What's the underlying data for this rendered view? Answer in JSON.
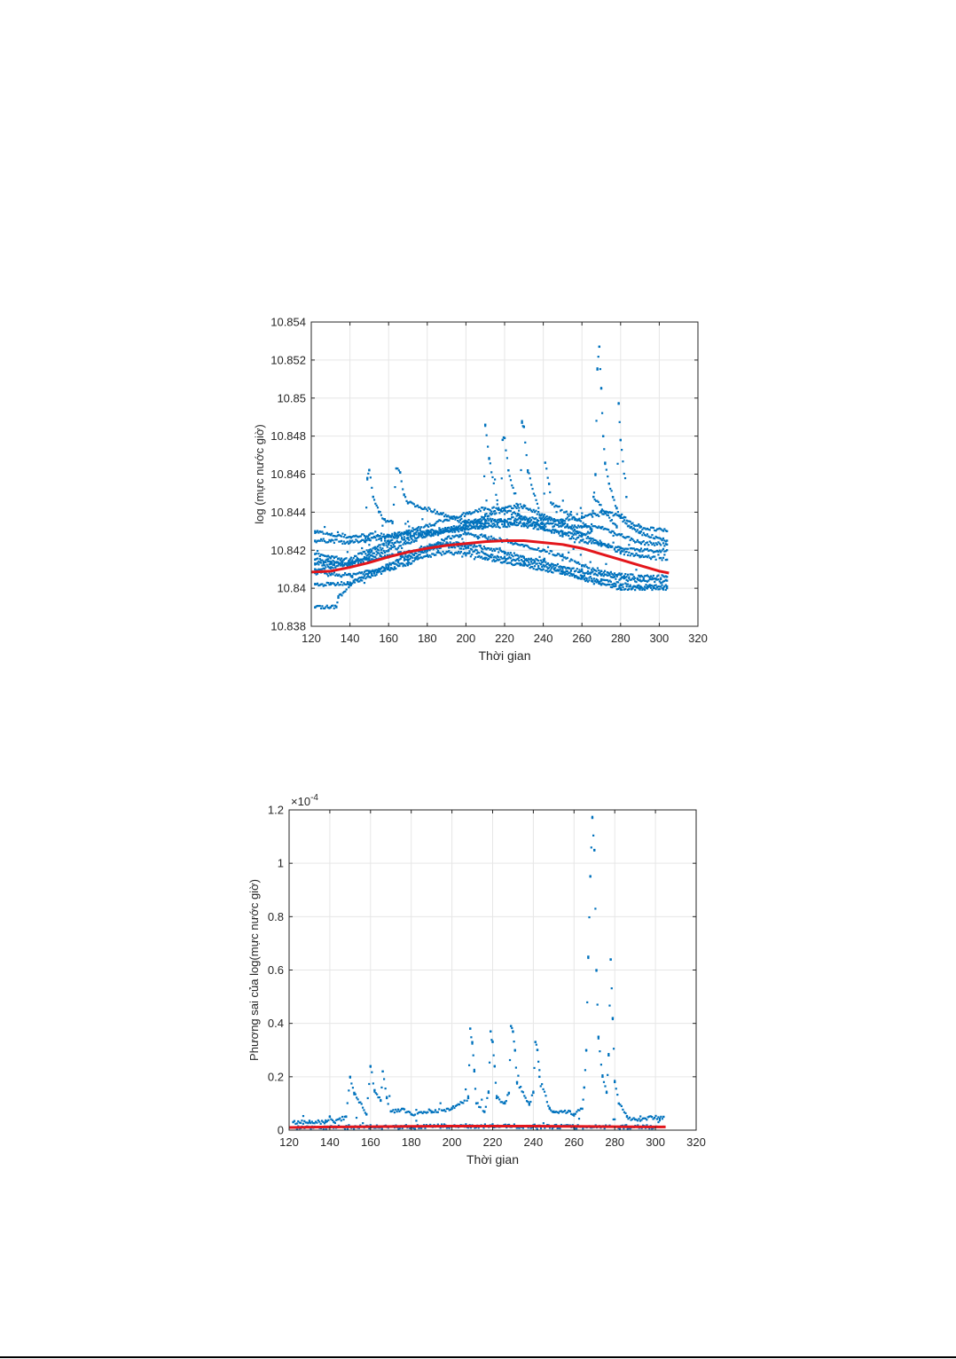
{
  "chart_data": [
    {
      "type": "scatter",
      "title": "",
      "xlabel": "Thời gian",
      "ylabel": "log (mực nước giờ)",
      "xlim": [
        120,
        320
      ],
      "ylim": [
        10.838,
        10.854
      ],
      "xticks": [
        "120",
        "140",
        "160",
        "180",
        "200",
        "220",
        "240",
        "260",
        "280",
        "300",
        "320"
      ],
      "yticks": [
        "10.838",
        "10.84",
        "10.842",
        "10.844",
        "10.846",
        "10.848",
        "10.85",
        "10.852",
        "10.854"
      ],
      "grid": true,
      "colors": {
        "points": "#0072BD",
        "trend": "#E3161B"
      },
      "series": [
        {
          "style": "points",
          "x": [
            122,
            130,
            140,
            150,
            160,
            170,
            180,
            190,
            200,
            210,
            220,
            230,
            240,
            250,
            260,
            270,
            280,
            290,
            304
          ],
          "y": [
            10.843,
            10.8428,
            10.8427,
            10.8428,
            10.8428,
            10.8429,
            10.843,
            10.843,
            10.8431,
            10.8432,
            10.8433,
            10.8434,
            10.8434,
            10.8433,
            10.8432,
            10.8432,
            10.8428,
            10.8424,
            10.8423
          ]
        },
        {
          "style": "points",
          "x": [
            122,
            130,
            140,
            150,
            160,
            170,
            180,
            190,
            200,
            210,
            220,
            230,
            240,
            250,
            260,
            270,
            280,
            290,
            304
          ],
          "y": [
            10.8425,
            10.8425,
            10.8424,
            10.8426,
            10.8427,
            10.8428,
            10.8429,
            10.843,
            10.8432,
            10.8434,
            10.8436,
            10.8437,
            10.8436,
            10.8436,
            10.8437,
            10.844,
            10.8438,
            10.8432,
            10.843
          ]
        },
        {
          "style": "points",
          "x": [
            122,
            130,
            140,
            150,
            160,
            170,
            180,
            190,
            200,
            210,
            220,
            230,
            240,
            250,
            260,
            270,
            280,
            290,
            304
          ],
          "y": [
            10.8413,
            10.8413,
            10.8412,
            10.8418,
            10.8423,
            10.8426,
            10.8428,
            10.843,
            10.8433,
            10.8438,
            10.8442,
            10.8443,
            10.8438,
            10.8434,
            10.8428,
            10.8424,
            10.8419,
            10.8417,
            10.8415
          ]
        },
        {
          "style": "points",
          "x": [
            122,
            130,
            140,
            150,
            160,
            170,
            180,
            190,
            200,
            210,
            220,
            230,
            240,
            250,
            260,
            270,
            280,
            290,
            304
          ],
          "y": [
            10.841,
            10.8411,
            10.8413,
            10.8415,
            10.8417,
            10.8419,
            10.8422,
            10.8424,
            10.8423,
            10.8421,
            10.8419,
            10.8416,
            10.8414,
            10.8411,
            10.8409,
            10.8407,
            10.8405,
            10.8404,
            10.8404
          ]
        },
        {
          "style": "points",
          "x": [
            122,
            130,
            140,
            150,
            160,
            170,
            180,
            190,
            200,
            210,
            220,
            230,
            240,
            250,
            260,
            270,
            280,
            290,
            304
          ],
          "y": [
            10.8408,
            10.8407,
            10.8407,
            10.8409,
            10.841,
            10.8413,
            10.8417,
            10.8419,
            10.8418,
            10.8416,
            10.8414,
            10.8412,
            10.841,
            10.8408,
            10.8406,
            10.8404,
            10.8402,
            10.8401,
            10.8401
          ]
        },
        {
          "style": "points",
          "x": [
            122,
            130,
            140,
            150,
            160,
            170,
            180,
            190,
            200,
            210,
            220,
            230,
            240,
            250,
            260,
            270,
            280,
            290,
            304
          ],
          "y": [
            10.8402,
            10.8402,
            10.8403,
            10.8406,
            10.841,
            10.8415,
            10.842,
            10.8423,
            10.8421,
            10.8418,
            10.8416,
            10.8414,
            10.8412,
            10.8409,
            10.8405,
            10.8402,
            10.84,
            10.84,
            10.84
          ]
        },
        {
          "style": "points",
          "x": [
            122,
            130,
            133,
            134,
            140,
            150,
            160,
            170,
            180,
            190,
            200,
            210,
            220,
            230,
            240,
            250,
            260,
            270,
            280,
            290,
            304
          ],
          "y": [
            10.839,
            10.839,
            10.839,
            10.8395,
            10.8402,
            10.8408,
            10.8412,
            10.8417,
            10.8421,
            10.8426,
            10.8429,
            10.8427,
            10.8425,
            10.8422,
            10.842,
            10.8417,
            10.8412,
            10.8409,
            10.8407,
            10.8406,
            10.8406
          ]
        },
        {
          "style": "points",
          "x": [
            122,
            130,
            140,
            150,
            160,
            170,
            180,
            190,
            200,
            210,
            220,
            230,
            240,
            250,
            260,
            270,
            280,
            290,
            304
          ],
          "y": [
            10.8418,
            10.8416,
            10.8415,
            10.842,
            10.8425,
            10.843,
            10.8433,
            10.8436,
            10.8439,
            10.8442,
            10.8441,
            10.8437,
            10.8432,
            10.8428,
            10.8425,
            10.8423,
            10.8421,
            10.842,
            10.842
          ]
        },
        {
          "style": "points",
          "x": [
            122,
            130,
            140,
            150,
            160,
            170,
            180,
            190,
            200,
            210,
            220,
            230,
            240,
            250,
            260,
            265,
            267,
            268,
            269,
            270,
            271,
            272,
            274,
            276,
            278,
            280,
            285,
            290,
            304
          ],
          "y": [
            10.8415,
            10.8414,
            10.8413,
            10.8416,
            10.842,
            10.8424,
            10.8428,
            10.8431,
            10.8434,
            10.8436,
            10.8435,
            10.8433,
            10.8431,
            10.8429,
            10.8428,
            10.843,
            10.846,
            10.8515,
            10.8527,
            10.8505,
            10.848,
            10.8466,
            10.8455,
            10.8448,
            10.8442,
            10.8437,
            10.8432,
            10.8429,
            10.8425
          ]
        },
        {
          "style": "points",
          "x": [
            148,
            149,
            150,
            152,
            155,
            158,
            162,
            164,
            166,
            168,
            170,
            209,
            210,
            212,
            218,
            219,
            220,
            222,
            228,
            229,
            230,
            232,
            240,
            241,
            243,
            244,
            265,
            266,
            278,
            279,
            280,
            283
          ],
          "y": [
            10.8425,
            10.8458,
            10.8462,
            10.8448,
            10.844,
            10.8436,
            10.8435,
            10.8463,
            10.8461,
            10.8449,
            10.8445,
            10.8432,
            10.8486,
            10.8468,
            10.8436,
            10.8478,
            10.8479,
            10.8462,
            10.8438,
            10.8487,
            10.8485,
            10.8462,
            10.8432,
            10.8466,
            10.8455,
            10.8445,
            10.8431,
            10.8448,
            10.8432,
            10.8497,
            10.8478,
            10.8448
          ]
        },
        {
          "style": "trend",
          "x": [
            120,
            130,
            140,
            150,
            160,
            170,
            180,
            190,
            200,
            210,
            220,
            230,
            240,
            250,
            260,
            270,
            280,
            290,
            300,
            305
          ],
          "y": [
            10.84085,
            10.8409,
            10.8411,
            10.84135,
            10.84165,
            10.8419,
            10.8421,
            10.84225,
            10.84235,
            10.84245,
            10.8425,
            10.8425,
            10.8424,
            10.8423,
            10.8421,
            10.8418,
            10.8415,
            10.8412,
            10.8409,
            10.8408
          ]
        }
      ]
    },
    {
      "type": "scatter",
      "title": "",
      "xlabel": "Thời gian",
      "ylabel": "Phương sai của log(mực nước giờ)",
      "xlim": [
        120,
        320
      ],
      "ylim": [
        0,
        1.2
      ],
      "exponent_label": "×10",
      "exponent_power": "-4",
      "xticks": [
        "120",
        "140",
        "160",
        "180",
        "200",
        "220",
        "240",
        "260",
        "280",
        "300",
        "320"
      ],
      "yticks": [
        "0",
        "0.2",
        "0.4",
        "0.6",
        "0.8",
        "1",
        "1.2"
      ],
      "grid": true,
      "colors": {
        "points": "#0072BD",
        "trend": "#E3161B"
      },
      "series": [
        {
          "style": "points",
          "x": [
            122,
            130,
            138,
            140,
            142,
            148,
            150,
            152,
            158,
            160,
            162,
            165,
            166,
            168,
            170,
            176,
            180,
            190,
            200,
            208,
            209,
            210,
            211,
            212,
            216,
            218,
            219,
            220,
            221,
            222,
            226,
            228,
            229,
            230,
            231,
            232,
            238,
            240,
            241,
            242,
            243,
            248,
            250,
            258,
            260,
            264,
            265,
            266,
            267,
            268,
            269,
            270,
            271,
            272,
            274,
            276,
            277,
            278,
            279,
            280,
            282,
            286,
            290,
            304
          ],
          "y": [
            0.03,
            0.03,
            0.03,
            0.05,
            0.03,
            0.05,
            0.2,
            0.14,
            0.06,
            0.24,
            0.15,
            0.11,
            0.22,
            0.12,
            0.07,
            0.08,
            0.06,
            0.07,
            0.08,
            0.12,
            0.38,
            0.33,
            0.22,
            0.1,
            0.07,
            0.14,
            0.37,
            0.33,
            0.24,
            0.12,
            0.1,
            0.14,
            0.39,
            0.37,
            0.3,
            0.18,
            0.1,
            0.14,
            0.33,
            0.3,
            0.2,
            0.08,
            0.07,
            0.07,
            0.06,
            0.08,
            0.16,
            0.3,
            0.65,
            0.95,
            1.17,
            1.05,
            0.6,
            0.35,
            0.2,
            0.14,
            0.28,
            0.64,
            0.42,
            0.18,
            0.1,
            0.05,
            0.04,
            0.05
          ]
        },
        {
          "style": "points",
          "x": [
            122,
            140,
            160,
            180,
            200,
            220,
            240,
            260,
            280,
            304
          ],
          "y": [
            0.01,
            0.01,
            0.012,
            0.012,
            0.015,
            0.015,
            0.014,
            0.013,
            0.012,
            0.013
          ]
        },
        {
          "style": "trend",
          "x": [
            120,
            140,
            160,
            180,
            200,
            220,
            240,
            260,
            280,
            300,
            305
          ],
          "y": [
            0.01,
            0.012,
            0.013,
            0.014,
            0.015,
            0.015,
            0.015,
            0.014,
            0.013,
            0.012,
            0.012
          ]
        }
      ]
    }
  ]
}
